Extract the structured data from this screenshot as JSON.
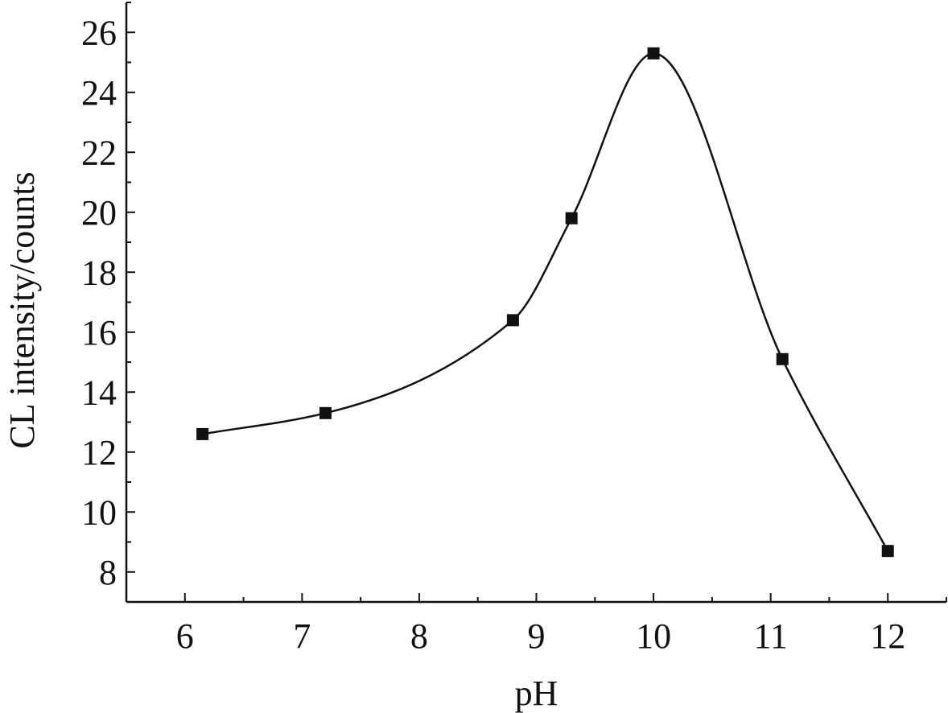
{
  "chart_data": {
    "type": "line",
    "title": "",
    "xlabel": "pH",
    "ylabel": "CL intensity/counts",
    "xlim": [
      5.5,
      12.5
    ],
    "ylim": [
      7,
      27
    ],
    "x_ticks": [
      6,
      7,
      8,
      9,
      10,
      11,
      12
    ],
    "y_ticks": [
      8,
      10,
      12,
      14,
      16,
      18,
      20,
      22,
      24,
      26
    ],
    "x_tick_labels": [
      "6",
      "7",
      "8",
      "9",
      "10",
      "11",
      "12"
    ],
    "y_tick_labels": [
      "8",
      "10",
      "12",
      "14",
      "16",
      "18",
      "20",
      "22",
      "24",
      "26"
    ],
    "grid": false,
    "smooth": true,
    "series": [
      {
        "x": [
          6.15,
          7.2,
          8.8,
          9.3,
          10.0,
          11.1,
          12.0
        ],
        "values": [
          12.6,
          13.3,
          16.4,
          19.8,
          25.3,
          15.1,
          8.7
        ],
        "marker": "square",
        "color": "#111111"
      }
    ]
  }
}
